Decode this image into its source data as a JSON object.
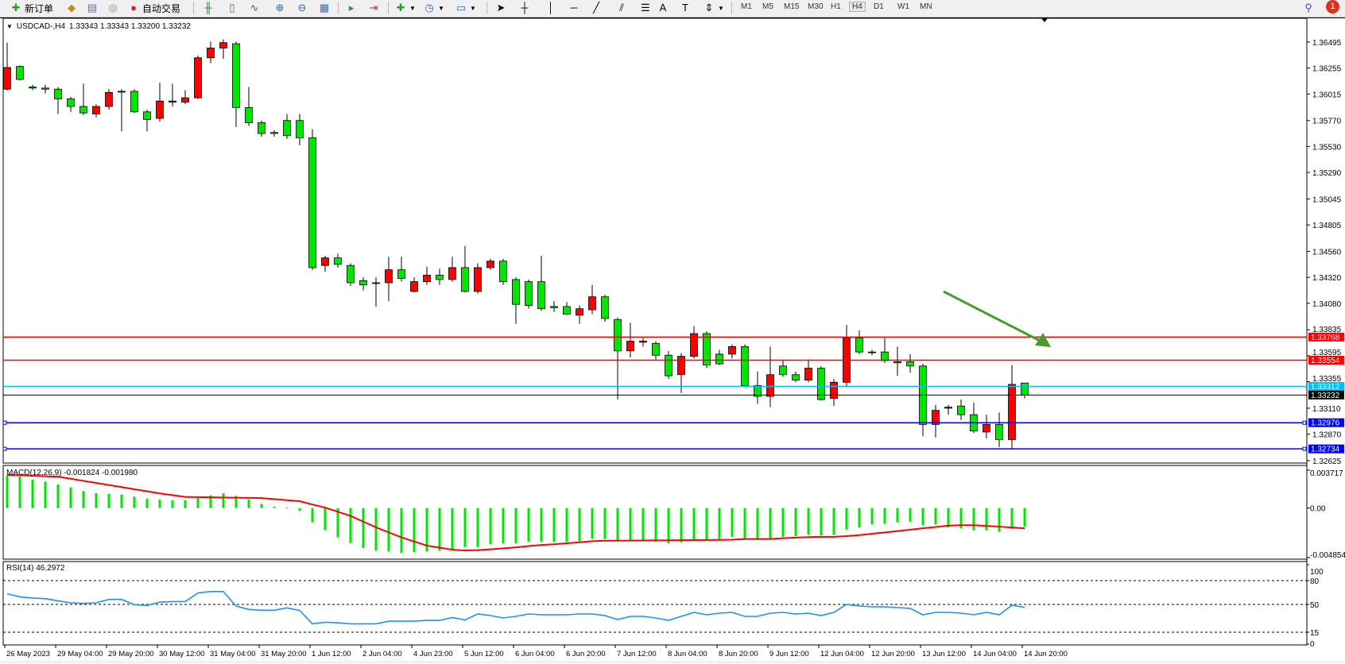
{
  "toolbar": {
    "new_order": "新订单",
    "auto_trade": "自动交易",
    "timeframes": [
      "M1",
      "M5",
      "M15",
      "M30",
      "H1",
      "H4",
      "D1",
      "W1",
      "MN"
    ],
    "active_timeframe": "H4",
    "notification_count": "1",
    "icons": [
      "new-order-icon",
      "history-icon",
      "terminal-icon",
      "signals-icon",
      "auto-trade-icon",
      "bar-chart-icon",
      "candlestick-icon",
      "line-chart-icon",
      "zoom-in-icon",
      "zoom-out-icon",
      "tile-windows-icon",
      "auto-scroll-icon",
      "chart-shift-icon",
      "indicators-icon",
      "periods-icon",
      "templates-icon",
      "cursor-icon",
      "crosshair-icon",
      "vertical-line-icon",
      "horizontal-line-icon",
      "trendline-icon",
      "equidistant-channel-icon",
      "fibonacci-icon",
      "text-icon",
      "text-label-icon",
      "arrows-icon",
      "search-icon",
      "notification-icon"
    ]
  },
  "chart": {
    "symbol": "USDCAD-,H4",
    "ohlc": "1.33343 1.33343 1.33200 1.33232",
    "up_color": "#ff0000",
    "down_color": "#00e600",
    "price_range": [
      1.3253,
      1.369
    ],
    "price_ticks": [
      "1.36495",
      "1.36255",
      "1.36015",
      "1.35770",
      "1.35530",
      "1.35290",
      "1.35045",
      "1.34805",
      "1.34560",
      "1.34320",
      "1.34080",
      "1.33835",
      "1.33595",
      "1.33355",
      "1.33110",
      "1.32870",
      "1.32625"
    ],
    "hlines": [
      {
        "price": 1.33768,
        "label": "1.33768",
        "color": "#ff0000"
      },
      {
        "price": 1.33554,
        "label": "1.33554",
        "color": "#ff0000"
      },
      {
        "price": 1.33312,
        "label": "1.33312",
        "color": "#00bfff"
      },
      {
        "price": 1.33232,
        "label": "1.33232",
        "color": "#000000"
      },
      {
        "price": 1.32976,
        "label": "1.32976",
        "color": "#0000ff"
      },
      {
        "price": 1.32734,
        "label": "1.32734",
        "color": "#0000ff"
      }
    ],
    "trend_arrow_color": "#4a9a2a",
    "candles": [
      [
        1.3606,
        1.3649,
        1.3605,
        1.3626
      ],
      [
        1.3627,
        1.3628,
        1.3614,
        1.3615
      ],
      [
        1.3608,
        1.361,
        1.3605,
        1.3607
      ],
      [
        1.3607,
        1.361,
        1.3602,
        1.3606
      ],
      [
        1.3606,
        1.3608,
        1.3583,
        1.3597
      ],
      [
        1.3597,
        1.3599,
        1.3585,
        1.359
      ],
      [
        1.359,
        1.3611,
        1.3582,
        1.3584
      ],
      [
        1.3583,
        1.3592,
        1.358,
        1.359
      ],
      [
        1.359,
        1.3606,
        1.3587,
        1.3603
      ],
      [
        1.3604,
        1.3606,
        1.3567,
        1.3604
      ],
      [
        1.3604,
        1.3606,
        1.3584,
        1.3585
      ],
      [
        1.3585,
        1.3587,
        1.3567,
        1.3578
      ],
      [
        1.3579,
        1.3612,
        1.3576,
        1.3595
      ],
      [
        1.3594,
        1.3611,
        1.359,
        1.3595
      ],
      [
        1.3594,
        1.3605,
        1.3592,
        1.3598
      ],
      [
        1.3598,
        1.3637,
        1.3597,
        1.3635
      ],
      [
        1.3635,
        1.365,
        1.363,
        1.3644
      ],
      [
        1.3644,
        1.3652,
        1.3634,
        1.3649
      ],
      [
        1.3648,
        1.365,
        1.3571,
        1.3589
      ],
      [
        1.3589,
        1.3608,
        1.3572,
        1.3575
      ],
      [
        1.3575,
        1.3577,
        1.3562,
        1.3565
      ],
      [
        1.3566,
        1.3568,
        1.3562,
        1.3565
      ],
      [
        1.3577,
        1.3583,
        1.356,
        1.3563
      ],
      [
        1.3577,
        1.3583,
        1.3554,
        1.3561
      ],
      [
        1.3561,
        1.3569,
        1.3439,
        1.3441
      ],
      [
        1.3443,
        1.3452,
        1.3437,
        1.345
      ],
      [
        1.345,
        1.3454,
        1.3441,
        1.3444
      ],
      [
        1.3443,
        1.3445,
        1.3424,
        1.3427
      ],
      [
        1.3429,
        1.3432,
        1.342,
        1.3425
      ],
      [
        1.3427,
        1.3432,
        1.3405,
        1.3427
      ],
      [
        1.3427,
        1.3451,
        1.341,
        1.3439
      ],
      [
        1.3439,
        1.3451,
        1.3428,
        1.3431
      ],
      [
        1.3419,
        1.3432,
        1.3418,
        1.3428
      ],
      [
        1.3428,
        1.3442,
        1.3425,
        1.3434
      ],
      [
        1.3434,
        1.344,
        1.3425,
        1.343
      ],
      [
        1.343,
        1.3451,
        1.3428,
        1.3441
      ],
      [
        1.3441,
        1.3461,
        1.3418,
        1.3419
      ],
      [
        1.3419,
        1.3445,
        1.3417,
        1.3441
      ],
      [
        1.3441,
        1.3449,
        1.3439,
        1.3447
      ],
      [
        1.3447,
        1.3449,
        1.3425,
        1.3428
      ],
      [
        1.343,
        1.3432,
        1.3389,
        1.3407
      ],
      [
        1.3428,
        1.343,
        1.3403,
        1.3406
      ],
      [
        1.3428,
        1.3452,
        1.3401,
        1.3403
      ],
      [
        1.3405,
        1.341,
        1.34,
        1.3404
      ],
      [
        1.3405,
        1.3409,
        1.3397,
        1.3398
      ],
      [
        1.3397,
        1.3406,
        1.3389,
        1.3403
      ],
      [
        1.3402,
        1.3425,
        1.3398,
        1.3414
      ],
      [
        1.3414,
        1.3416,
        1.3391,
        1.3394
      ],
      [
        1.3393,
        1.3395,
        1.3319,
        1.3364
      ],
      [
        1.3364,
        1.339,
        1.3358,
        1.3373
      ],
      [
        1.3372,
        1.3376,
        1.3368,
        1.3373
      ],
      [
        1.3371,
        1.3373,
        1.3356,
        1.336
      ],
      [
        1.336,
        1.3364,
        1.3338,
        1.3341
      ],
      [
        1.3342,
        1.3362,
        1.3325,
        1.3359
      ],
      [
        1.3359,
        1.3387,
        1.3357,
        1.338
      ],
      [
        1.338,
        1.3382,
        1.3348,
        1.3351
      ],
      [
        1.3361,
        1.3365,
        1.3351,
        1.3352
      ],
      [
        1.3361,
        1.337,
        1.3357,
        1.3368
      ],
      [
        1.3368,
        1.337,
        1.3331,
        1.3332
      ],
      [
        1.3332,
        1.3345,
        1.3315,
        1.3322
      ],
      [
        1.3322,
        1.3368,
        1.3312,
        1.3342
      ],
      [
        1.335,
        1.3355,
        1.334,
        1.3342
      ],
      [
        1.3342,
        1.3345,
        1.3335,
        1.3337
      ],
      [
        1.3337,
        1.3356,
        1.3335,
        1.3348
      ],
      [
        1.3348,
        1.335,
        1.3318,
        1.3319
      ],
      [
        1.332,
        1.3338,
        1.3313,
        1.3335
      ],
      [
        1.3335,
        1.3388,
        1.3331,
        1.3376
      ],
      [
        1.3376,
        1.3383,
        1.3361,
        1.3363
      ],
      [
        1.3363,
        1.3365,
        1.336,
        1.3363
      ],
      [
        1.3363,
        1.3376,
        1.3353,
        1.3355
      ],
      [
        1.3354,
        1.3368,
        1.3341,
        1.3353
      ],
      [
        1.3354,
        1.3361,
        1.3344,
        1.335
      ],
      [
        1.335,
        1.3352,
        1.3285,
        1.3296
      ],
      [
        1.3296,
        1.3314,
        1.3284,
        1.3309
      ],
      [
        1.3311,
        1.3314,
        1.3305,
        1.3312
      ],
      [
        1.3313,
        1.3319,
        1.33,
        1.3305
      ],
      [
        1.3305,
        1.3316,
        1.3288,
        1.329
      ],
      [
        1.3289,
        1.3305,
        1.3283,
        1.3296
      ],
      [
        1.3296,
        1.3307,
        1.3275,
        1.3282
      ],
      [
        1.3282,
        1.3351,
        1.3273,
        1.3333
      ],
      [
        1.33343,
        1.33343,
        1.332,
        1.33232
      ]
    ]
  },
  "macd": {
    "label": "MACD(12,26,9) -0.001824 -0.001980",
    "range": [
      -0.004854,
      0.003717
    ],
    "ticks": [
      "0.003717",
      "0.00",
      "-0.004854"
    ],
    "histogram_color": "#00e600",
    "signal_color": "#ff0000",
    "histogram": [
      0.00319,
      0.00308,
      0.0028,
      0.00259,
      0.00231,
      0.00203,
      0.00168,
      0.00147,
      0.0014,
      0.00133,
      0.00112,
      0.00091,
      0.00084,
      0.00077,
      0.00077,
      0.00098,
      0.00126,
      0.00147,
      0.00119,
      0.00084,
      0.00042,
      0.00014,
      5e-05,
      -0.00026,
      -0.0014,
      -0.00217,
      -0.00287,
      -0.00343,
      -0.00391,
      -0.00419,
      -0.00426,
      -0.0044,
      -0.00433,
      -0.00426,
      -0.00419,
      -0.00412,
      -0.00382,
      -0.00382,
      -0.00353,
      -0.00348,
      -0.00346,
      -0.00332,
      -0.00332,
      -0.00332,
      -0.00332,
      -0.00325,
      -0.00303,
      -0.00303,
      -0.00315,
      -0.00315,
      -0.00315,
      -0.00332,
      -0.00346,
      -0.00337,
      -0.00315,
      -0.00315,
      -0.00303,
      -0.00282,
      -0.00296,
      -0.00303,
      -0.00296,
      -0.00282,
      -0.00275,
      -0.00261,
      -0.00268,
      -0.00261,
      -0.00211,
      -0.0019,
      -0.00161,
      -0.00154,
      -0.0014,
      -0.00133,
      -0.00168,
      -0.00161,
      -0.0019,
      -0.00197,
      -0.00218,
      -0.00218,
      -0.00232,
      -0.00204,
      -0.00182
    ],
    "signal": [
      0.00326,
      0.00322,
      0.00317,
      0.00312,
      0.00308,
      0.00288,
      0.00267,
      0.00247,
      0.00226,
      0.00206,
      0.00185,
      0.00165,
      0.00144,
      0.00127,
      0.0011,
      0.00108,
      0.00106,
      0.00104,
      0.00102,
      0.001,
      0.00098,
      0.00088,
      0.00078,
      0.00068,
      0.00035,
      5e-05,
      -0.00036,
      -0.00077,
      -0.00133,
      -0.00189,
      -0.00238,
      -0.00287,
      -0.00328,
      -0.00368,
      -0.00388,
      -0.00408,
      -0.00415,
      -0.00412,
      -0.00405,
      -0.00395,
      -0.00385,
      -0.00372,
      -0.00362,
      -0.00355,
      -0.00345,
      -0.00335,
      -0.00325,
      -0.0032,
      -0.0032,
      -0.00319,
      -0.00318,
      -0.00317,
      -0.00316,
      -0.00315,
      -0.00314,
      -0.00313,
      -0.00312,
      -0.0031,
      -0.00303,
      -0.00303,
      -0.00303,
      -0.00295,
      -0.0029,
      -0.00285,
      -0.00282,
      -0.00282,
      -0.00275,
      -0.00265,
      -0.00252,
      -0.00239,
      -0.00225,
      -0.00212,
      -0.00198,
      -0.00185,
      -0.00172,
      -0.00168,
      -0.00168,
      -0.00175,
      -0.00182,
      -0.0019,
      -0.00198
    ]
  },
  "rsi": {
    "label": "RSI(14) 46.2972",
    "ticks": [
      "100",
      "80",
      "50",
      "15",
      "0"
    ],
    "levels": [
      80,
      50,
      15
    ],
    "line_color": "#1e90ff",
    "values": [
      63.5,
      59.6,
      57.9,
      57.3,
      54.6,
      52,
      51.3,
      52,
      56.3,
      56.3,
      49.7,
      48.7,
      53,
      53.6,
      53.6,
      64.5,
      66.2,
      66.2,
      48,
      43.7,
      42.7,
      42.7,
      45.7,
      42.4,
      25.6,
      27.6,
      26.9,
      25.6,
      25.6,
      25.6,
      28.9,
      28.9,
      28.9,
      29.9,
      29.9,
      33.5,
      30.5,
      38.1,
      36,
      33,
      35,
      38,
      37,
      37,
      37,
      38,
      38,
      36,
      31,
      35,
      35,
      33,
      30,
      35,
      40,
      37,
      39,
      40,
      35,
      35,
      39,
      40,
      38,
      39,
      36,
      40,
      50,
      48,
      47,
      47,
      46,
      45,
      37,
      40,
      40,
      39,
      37,
      40,
      37,
      49,
      46.3
    ]
  },
  "time_axis": {
    "labels": [
      "26 May 2023",
      "29 May 04:00",
      "29 May 20:00",
      "30 May 12:00",
      "31 May 04:00",
      "31 May 20:00",
      "1 Jun 12:00",
      "2 Jun 04:00",
      "4 Jun 23:00",
      "5 Jun 12:00",
      "6 Jun 04:00",
      "6 Jun 20:00",
      "7 Jun 12:00",
      "8 Jun 04:00",
      "8 Jun 20:00",
      "9 Jun 12:00",
      "12 Jun 04:00",
      "12 Jun 20:00",
      "13 Jun 12:00",
      "14 Jun 04:00",
      "14 Jun 20:00"
    ]
  }
}
